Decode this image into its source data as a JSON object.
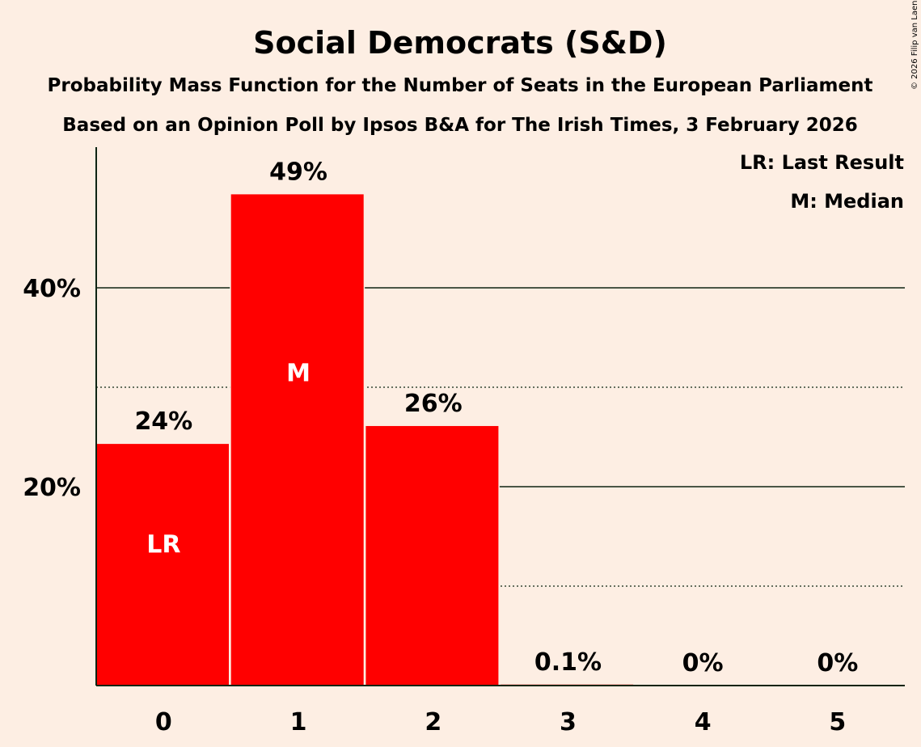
{
  "chart_data": {
    "type": "bar",
    "title": "Social Democrats (S&D)",
    "subtitle_1": "Probability Mass Function for the Number of Seats in the European Parliament",
    "subtitle_2": "Based on an Opinion Poll by Ipsos B&A for The Irish Times, 3 February 2026",
    "categories": [
      "0",
      "1",
      "2",
      "3",
      "4",
      "5"
    ],
    "values": [
      24.3,
      49.4,
      26.1,
      0.1,
      0,
      0
    ],
    "value_labels": [
      "24%",
      "49%",
      "26%",
      "0.1%",
      "0%",
      "0%"
    ],
    "bar_markers": [
      "LR",
      "M",
      "",
      "",
      "",
      ""
    ],
    "ytick_values": [
      20,
      40
    ],
    "ytick_labels": [
      "20%",
      "40%"
    ],
    "minor_gridlines": [
      10,
      30
    ],
    "ylim": [
      0,
      54
    ],
    "xlabel": "",
    "ylabel": "",
    "legend": [
      "LR: Last Result",
      "M: Median"
    ],
    "legend_position": "top-right",
    "bar_color": "#FF0000",
    "background_color": "#FDEEE3",
    "text_color": "#0E2413",
    "copyright": "© 2026 Filip van Laenen"
  }
}
